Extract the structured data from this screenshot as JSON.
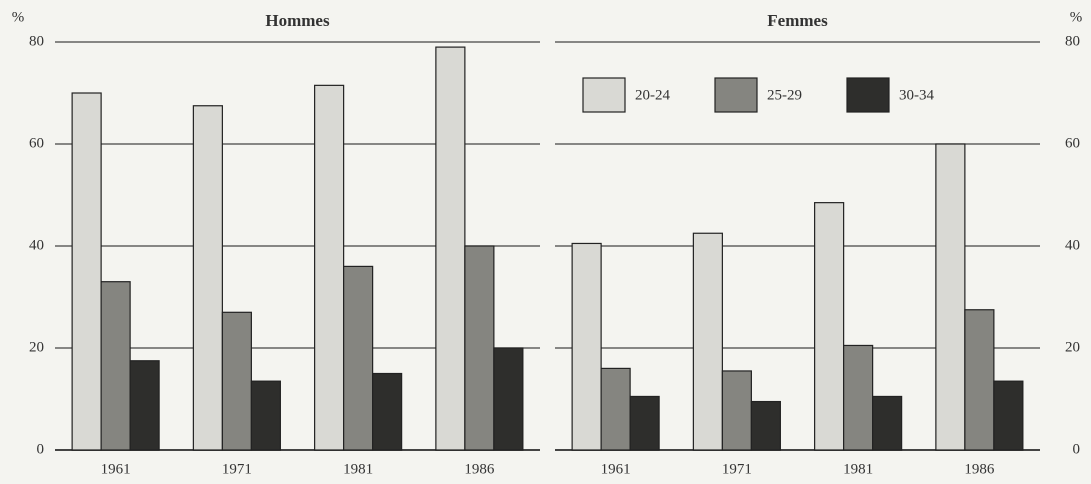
{
  "chart_data": [
    {
      "type": "bar",
      "title": "Hommes",
      "y_label": "%",
      "categories": [
        "1961",
        "1971",
        "1981",
        "1986"
      ],
      "series": [
        {
          "color": "#d9d9d4",
          "values": [
            70,
            67.5,
            71.5,
            79
          ]
        },
        {
          "color": "#858580",
          "values": [
            33,
            27,
            36,
            40
          ]
        },
        {
          "color": "#2e2e2c",
          "values": [
            17.5,
            13.5,
            15,
            20
          ]
        }
      ],
      "ylim": [
        0,
        80
      ],
      "yticks": [
        0,
        20,
        40,
        60,
        80
      ],
      "grid": true,
      "tick_side": "left"
    },
    {
      "type": "bar",
      "title": "Femmes",
      "y_label": "%",
      "categories": [
        "1961",
        "1971",
        "1981",
        "1986"
      ],
      "series": [
        {
          "name": "20-24",
          "color": "#d9d9d4",
          "values": [
            40.5,
            42.5,
            48.5,
            60
          ]
        },
        {
          "name": "25-29",
          "color": "#858580",
          "values": [
            16,
            15.5,
            20.5,
            27.5
          ]
        },
        {
          "name": "30-34",
          "color": "#2e2e2c",
          "values": [
            10.5,
            9.5,
            10.5,
            13.5
          ]
        }
      ],
      "ylim": [
        0,
        80
      ],
      "yticks": [
        0,
        20,
        40,
        60,
        80
      ],
      "grid": true,
      "tick_side": "right",
      "legend": "top"
    }
  ]
}
